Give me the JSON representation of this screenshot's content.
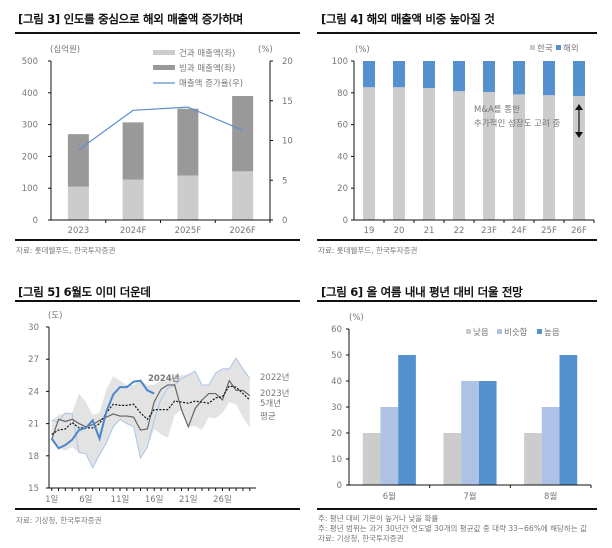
{
  "panels": {
    "fig3": {
      "title": "[그림 3] 인도를 중심으로 해외 매출액 증가하며",
      "source": "자료: 롯데웰푸드, 한국투자증권"
    },
    "fig4": {
      "title": "[그림 4] 해외 매출액 비중 높아질 것",
      "source": "자료: 롯데웰푸드, 한국투자증권"
    },
    "fig5": {
      "title": "[그림 5] 6월도 이미 더운데",
      "source": "자료: 기상청, 한국투자증권"
    },
    "fig6": {
      "title": "[그림 6] 올 여름 내내 평년 대비 더울 전망",
      "notes": [
        "주: 평년 대비 기온이 높거나 낮을 확률",
        "주: 평년 범위는 과거 30년간 연도별 30개의 평균값 중 대략 33~66%에 해당하는 값"
      ],
      "source": "자료: 기상청, 한국투자증권"
    }
  },
  "chart_data": [
    {
      "id": "fig3",
      "type": "bar",
      "stacked": true,
      "categories": [
        "2023",
        "2024F",
        "2025F",
        "2026F"
      ],
      "ylabel": "(십억원)",
      "y2label": "(%)",
      "ylim": [
        0,
        500
      ],
      "yticks": [
        0,
        100,
        200,
        300,
        400,
        500
      ],
      "y2lim": [
        0,
        20
      ],
      "y2ticks": [
        0,
        5,
        10,
        15,
        20
      ],
      "series": [
        {
          "name": "건과 매출액(좌)",
          "type": "bar",
          "axis": "left",
          "color": "#cccccc",
          "values": [
            105,
            127,
            140,
            153
          ]
        },
        {
          "name": "빙과 매출액(좌)",
          "type": "bar",
          "axis": "left",
          "color": "#999999",
          "values": [
            165,
            180,
            210,
            237
          ]
        },
        {
          "name": "매출액 증가율(우)",
          "type": "line",
          "axis": "right",
          "color": "#5b8fd1",
          "values": [
            8.8,
            13.8,
            14.2,
            11.3
          ]
        }
      ],
      "legend": "top-right"
    },
    {
      "id": "fig4",
      "type": "bar",
      "stacked": true,
      "categories": [
        "19",
        "20",
        "21",
        "22",
        "23F",
        "24F",
        "25F",
        "26F"
      ],
      "ylabel": "(%)",
      "ylim": [
        0,
        100
      ],
      "yticks": [
        0,
        20,
        40,
        60,
        80,
        100
      ],
      "series": [
        {
          "name": "한국",
          "color": "#cccccc",
          "values": [
            83.5,
            83.5,
            83,
            81,
            80.5,
            79,
            78.5,
            78
          ]
        },
        {
          "name": "해외",
          "color": "#5591cf",
          "values": [
            16.5,
            16.5,
            17,
            19,
            19.5,
            21,
            21.5,
            22
          ]
        }
      ],
      "annotation": [
        "M&A를 통한",
        "추가적인 성장도 고려 중"
      ],
      "legend": "top-right"
    },
    {
      "id": "fig5",
      "type": "line",
      "ylabel": "(도)",
      "ylim": [
        15,
        30
      ],
      "yticks": [
        15,
        18,
        21,
        24,
        27,
        30
      ],
      "xticks": [
        {
          "day": 1,
          "label": "1일"
        },
        {
          "day": 6,
          "label": "6일"
        },
        {
          "day": 11,
          "label": "11일"
        },
        {
          "day": 16,
          "label": "16일"
        },
        {
          "day": 21,
          "label": "21일"
        },
        {
          "day": 26,
          "label": "26일"
        }
      ],
      "band": {
        "upper": [
          21.3,
          21.8,
          22.0,
          22.0,
          23.8,
          23.0,
          21.8,
          22.0,
          24.2,
          25.4,
          25.0,
          24.6,
          24.6,
          25.0,
          24.6,
          24.6,
          25.0,
          25.0,
          25.4,
          25.5,
          25.6,
          25.9,
          24.6,
          24.6,
          25.7,
          26.1,
          26.1,
          27.1,
          26.1,
          25.2
        ],
        "lower": [
          19.5,
          18.7,
          18.5,
          18.8,
          18.3,
          18.2,
          16.9,
          18.1,
          19.2,
          20.7,
          21.4,
          21.0,
          20.7,
          17.8,
          18.8,
          20.5,
          20.0,
          19.7,
          21.8,
          22.3,
          20.7,
          20.8,
          20.4,
          21.6,
          21.5,
          22.0,
          23.0,
          22.8,
          21.6,
          20.6
        ]
      },
      "series": [
        {
          "name": "2022년",
          "color": "#a9c4e8",
          "width": 1,
          "dash": "",
          "values": [
            21.3,
            21.2,
            22.0,
            21.9,
            18.3,
            18.2,
            16.9,
            18.1,
            19.2,
            20.7,
            21.4,
            21.0,
            20.7,
            17.8,
            18.8,
            21.3,
            23.3,
            24.3,
            24.6,
            25.2,
            25.5,
            25.9,
            24.6,
            24.6,
            25.7,
            26.1,
            26.1,
            27.1,
            26.1,
            25.2
          ]
        },
        {
          "name": "2023년",
          "color": "#666666",
          "width": 1.2,
          "dash": "",
          "values": [
            19.5,
            21.4,
            21.2,
            21.4,
            21.0,
            20.7,
            20.9,
            21.3,
            21.6,
            21.9,
            21.7,
            21.7,
            21.6,
            20.4,
            20.5,
            23.0,
            24.2,
            24.6,
            24.6,
            22.3,
            20.7,
            22.4,
            23.2,
            23.8,
            23.8,
            23.2,
            25.0,
            24.1,
            24.1,
            23.6
          ]
        },
        {
          "name": "5개년 평균",
          "color": "#111111",
          "width": 1.2,
          "dash": "2,1.5",
          "values": [
            20.0,
            20.4,
            20.5,
            21.1,
            20.6,
            20.6,
            20.6,
            21.0,
            22.0,
            22.8,
            22.7,
            22.7,
            22.8,
            22.0,
            21.4,
            22.3,
            22.3,
            22.3,
            23.1,
            23.0,
            22.9,
            23.1,
            23.0,
            22.9,
            23.4,
            23.5,
            24.5,
            24.4,
            23.8,
            23.2
          ]
        },
        {
          "name": "2024년",
          "color": "#4a86cc",
          "width": 2,
          "dash": "",
          "values": [
            19.6,
            18.7,
            19.0,
            19.5,
            20.4,
            20.6,
            21.3,
            19.6,
            22.1,
            23.7,
            24.4,
            24.4,
            24.9,
            25.0,
            24.1,
            23.8
          ]
        }
      ],
      "labels": {
        "2022": "2022년",
        "2023": "2023년",
        "avg1": "5개년",
        "avg2": "평균",
        "2024": "2024년"
      }
    },
    {
      "id": "fig6",
      "type": "bar",
      "categories": [
        "6월",
        "7월",
        "8월"
      ],
      "ylabel": "(%)",
      "ylim": [
        0,
        60
      ],
      "yticks": [
        0,
        10,
        20,
        30,
        40,
        50,
        60
      ],
      "series": [
        {
          "name": "낮음",
          "color": "#cccccc",
          "values": [
            20,
            20,
            20
          ]
        },
        {
          "name": "비슷함",
          "color": "#adc2e4",
          "values": [
            30,
            40,
            30
          ]
        },
        {
          "name": "높음",
          "color": "#5591cf",
          "values": [
            50,
            40,
            50
          ]
        }
      ],
      "legend": "top-right"
    }
  ]
}
